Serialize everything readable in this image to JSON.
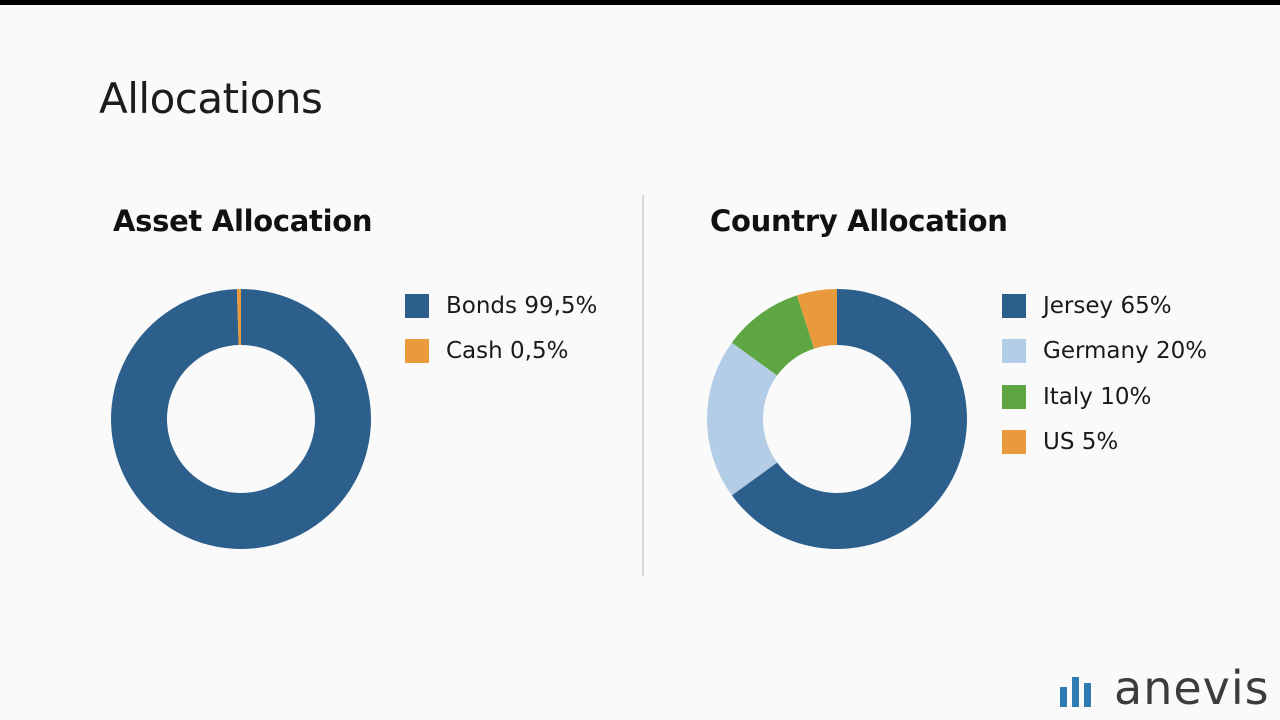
{
  "page": {
    "title": "Allocations"
  },
  "chart_data": [
    {
      "type": "pie",
      "title": "Asset Allocation",
      "donut": true,
      "legend_position": "right",
      "categories": [
        "Bonds",
        "Cash"
      ],
      "values": [
        99.5,
        0.5
      ],
      "labels": [
        "Bonds 99,5%",
        "Cash 0,5%"
      ],
      "colors": [
        "#2c5f8c",
        "#e89a3c"
      ]
    },
    {
      "type": "pie",
      "title": "Country Allocation",
      "donut": true,
      "legend_position": "right",
      "categories": [
        "Jersey",
        "Germany",
        "Italy",
        "US"
      ],
      "values": [
        65,
        20,
        10,
        5
      ],
      "labels": [
        "Jersey 65%",
        "Germany 20%",
        "Italy 10%",
        "US 5%"
      ],
      "colors": [
        "#2c5f8c",
        "#b3cde6",
        "#5ea642",
        "#e89a3c"
      ]
    }
  ],
  "logo": {
    "text": "anevis",
    "icon": "bar-chart-icon",
    "color": "#2e7cb3"
  }
}
